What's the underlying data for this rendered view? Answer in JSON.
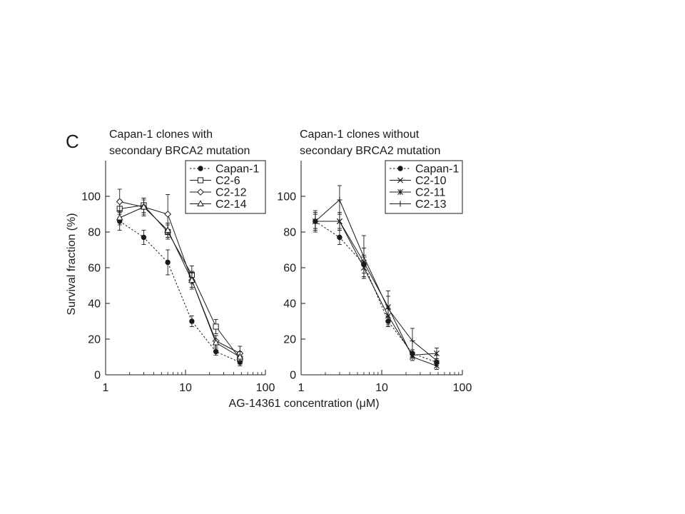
{
  "panel_letter": "C",
  "shared_xlabel": "AG-14361 concentration (μM)",
  "ylabel": "Survival fraction (%)",
  "chart_data": [
    {
      "type": "line",
      "title_lines": [
        "Capan-1 clones with",
        "secondary BRCA2 mutation"
      ],
      "xscale": "log",
      "xlim": [
        1,
        100
      ],
      "ylim": [
        0,
        120
      ],
      "xticks": [
        1,
        10,
        100
      ],
      "yticks": [
        0,
        20,
        40,
        60,
        80,
        100
      ],
      "xlabel": "AG-14361 concentration (μM)",
      "ylabel": "Survival fraction (%)",
      "legend_position": "top-right",
      "grid": false,
      "x": [
        1.5,
        3,
        6,
        12,
        24,
        48
      ],
      "series": [
        {
          "name": "Capan-1",
          "marker": "filled-circle",
          "dash": "dotted",
          "values": [
            86,
            77,
            63,
            30,
            13,
            7
          ],
          "errors": [
            5,
            4,
            7,
            3,
            2,
            2
          ]
        },
        {
          "name": "C2-6",
          "marker": "open-square",
          "dash": "solid",
          "values": [
            93,
            95,
            80,
            56,
            27,
            9
          ],
          "errors": [
            5,
            4,
            4,
            5,
            4,
            3
          ]
        },
        {
          "name": "C2-12",
          "marker": "open-diamond",
          "dash": "solid",
          "values": [
            97,
            94,
            90,
            53,
            19,
            12
          ],
          "errors": [
            7,
            4,
            11,
            4,
            3,
            4
          ]
        },
        {
          "name": "C2-14",
          "marker": "open-triangle",
          "dash": "solid",
          "values": [
            88,
            94,
            81,
            53,
            18,
            10
          ],
          "errors": [
            4,
            5,
            4,
            5,
            4,
            3
          ]
        }
      ]
    },
    {
      "type": "line",
      "title_lines": [
        "Capan-1 clones without",
        "secondary BRCA2 mutation"
      ],
      "xscale": "log",
      "xlim": [
        1,
        100
      ],
      "ylim": [
        0,
        120
      ],
      "xticks": [
        1,
        10,
        100
      ],
      "yticks": [
        0,
        20,
        40,
        60,
        80,
        100
      ],
      "xlabel": "AG-14361 concentration (μM)",
      "ylabel": "",
      "legend_position": "top-right",
      "grid": false,
      "x": [
        1.5,
        3,
        6,
        12,
        24,
        48
      ],
      "series": [
        {
          "name": "Capan-1",
          "marker": "filled-circle",
          "dash": "dotted",
          "values": [
            86,
            77,
            62,
            30,
            12,
            7
          ],
          "errors": [
            5,
            4,
            5,
            3,
            2,
            2
          ]
        },
        {
          "name": "C2-10",
          "marker": "x",
          "dash": "solid",
          "values": [
            86,
            86,
            63,
            38,
            10,
            5
          ],
          "errors": [
            4,
            5,
            8,
            6,
            2,
            2
          ]
        },
        {
          "name": "C2-11",
          "marker": "star",
          "dash": "solid",
          "values": [
            86,
            86,
            60,
            33,
            11,
            12
          ],
          "errors": [
            4,
            4,
            6,
            5,
            3,
            3
          ]
        },
        {
          "name": "C2-13",
          "marker": "plus",
          "dash": "solid",
          "values": [
            86,
            98,
            66,
            37,
            19,
            8
          ],
          "errors": [
            6,
            8,
            12,
            10,
            7,
            3
          ]
        }
      ]
    }
  ]
}
